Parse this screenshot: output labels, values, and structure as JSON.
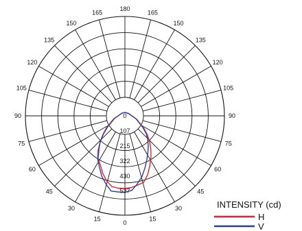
{
  "chart_data": {
    "type": "polar-line",
    "angle_labels_left": [
      "0",
      "15",
      "30",
      "45",
      "60",
      "75",
      "90",
      "105",
      "120",
      "135",
      "150",
      "165",
      "180"
    ],
    "angle_labels_right": [
      "15",
      "30",
      "45",
      "60",
      "75",
      "90",
      "105",
      "120",
      "135",
      "150",
      "165"
    ],
    "radial_ticks": [
      "0",
      "107",
      "215",
      "322",
      "430",
      "537"
    ],
    "r_max": 537,
    "legend": {
      "title": "INTENSITY (cd)",
      "entries": [
        {
          "name": "H",
          "color": "#e8202a"
        },
        {
          "name": "V",
          "color": "#2a3f9a"
        }
      ]
    },
    "series": [
      {
        "name": "H",
        "color": "#e8202a",
        "angles": [
          -90,
          -75,
          -60,
          -50,
          -45,
          -40,
          -35,
          -30,
          -25,
          -20,
          -15,
          -10,
          -5,
          0,
          5,
          10,
          15,
          20,
          25,
          30,
          35,
          40,
          45,
          50,
          60,
          75,
          90
        ],
        "values": [
          0,
          20,
          85,
          160,
          205,
          255,
          300,
          355,
          385,
          430,
          470,
          500,
          505,
          505,
          500,
          490,
          480,
          440,
          390,
          345,
          300,
          255,
          210,
          165,
          90,
          25,
          0
        ]
      },
      {
        "name": "V",
        "color": "#2a3f9a",
        "angles": [
          -90,
          -75,
          -60,
          -50,
          -45,
          -40,
          -35,
          -30,
          -25,
          -20,
          -15,
          -10,
          -5,
          0,
          5,
          10,
          15,
          20,
          25,
          30,
          35,
          40,
          45,
          50,
          60,
          75,
          90
        ],
        "values": [
          0,
          20,
          80,
          150,
          200,
          255,
          310,
          360,
          400,
          450,
          490,
          530,
          530,
          530,
          520,
          480,
          440,
          390,
          345,
          305,
          270,
          235,
          200,
          155,
          85,
          22,
          0
        ]
      }
    ]
  }
}
